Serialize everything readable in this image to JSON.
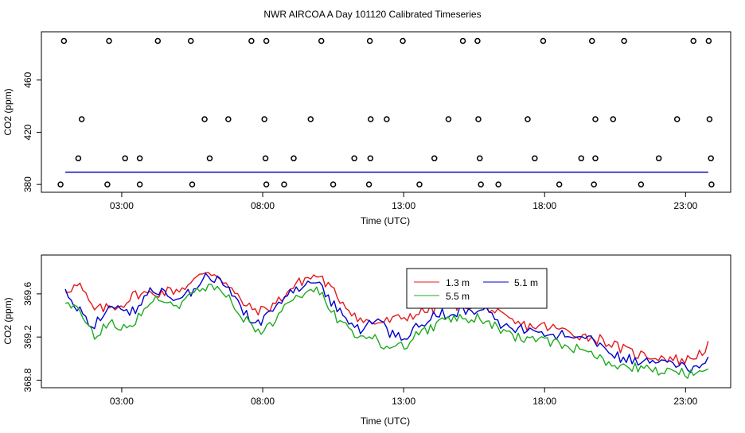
{
  "title": "NWR AIRCOA A  Day 101120  Calibrated Timeseries",
  "colors": {
    "red": "#e41a1c",
    "green": "#1faa1f",
    "blue": "#0000cc",
    "black": "#000000"
  },
  "chart_data": [
    {
      "type": "scatter+line",
      "xlabel": "Time (UTC)",
      "ylabel": "CO2 (ppm)",
      "xlim": [
        0.15,
        24.6
      ],
      "ylim": [
        374,
        497
      ],
      "xticks": [
        3,
        8,
        13,
        18,
        23
      ],
      "xtick_labels": [
        "03:00",
        "08:00",
        "13:00",
        "18:00",
        "23:00"
      ],
      "yticks": [
        380,
        420,
        460
      ],
      "ytick_labels": [
        "380",
        "420",
        "460"
      ],
      "points_x": [
        0.95,
        2.55,
        4.28,
        5.45,
        7.6,
        8.13,
        10.08,
        11.8,
        12.97,
        15.1,
        15.62,
        17.95,
        19.68,
        20.82,
        23.28,
        23.82,
        1.58,
        5.94,
        6.78,
        8.06,
        9.7,
        11.83,
        12.4,
        14.59,
        15.65,
        17.4,
        19.8,
        20.43,
        22.7,
        23.85,
        1.46,
        3.12,
        3.64,
        6.12,
        8.1,
        9.1,
        11.25,
        11.82,
        14.09,
        15.7,
        17.65,
        19.3,
        19.8,
        22.05,
        23.9,
        0.83,
        2.49,
        3.64,
        5.5,
        8.13,
        8.76,
        10.5,
        11.77,
        13.56,
        15.74,
        16.36,
        18.52,
        19.75,
        21.42,
        23.92
      ],
      "points_y": [
        490,
        490,
        490,
        490,
        490,
        490,
        490,
        490,
        490,
        490,
        490,
        490,
        490,
        490,
        490,
        490,
        430,
        430,
        430,
        430,
        430,
        430,
        430,
        430,
        430,
        430,
        430,
        430,
        430,
        430,
        400,
        400,
        400,
        400,
        400,
        400,
        400,
        400,
        400,
        400,
        400,
        400,
        400,
        400,
        400,
        380,
        380,
        380,
        380,
        380,
        380,
        380,
        380,
        380,
        380,
        380,
        380,
        380,
        380,
        380
      ],
      "flat_line_value": 389.4,
      "flat_line_range": [
        1.0,
        23.8
      ]
    },
    {
      "type": "line",
      "xlabel": "Time (UTC)",
      "ylabel": "CO2 (ppm)",
      "xlim": [
        0.15,
        24.6
      ],
      "ylim": [
        368.73,
        369.96
      ],
      "xticks": [
        3,
        8,
        13,
        18,
        23
      ],
      "xtick_labels": [
        "03:00",
        "08:00",
        "13:00",
        "18:00",
        "23:00"
      ],
      "yticks": [
        368.8,
        369.2,
        369.6
      ],
      "ytick_labels": [
        "368.8",
        "369.2",
        "369.6"
      ],
      "legend_position": "top-center",
      "legend": [
        "1.3 m",
        "5.1 m",
        "5.5 m"
      ],
      "x_range": [
        1.0,
        23.8
      ],
      "series": [
        {
          "name": "1.3 m",
          "color": "red",
          "anchors_x": [
            1,
            1.5,
            2,
            2.5,
            3,
            3.5,
            4,
            4.5,
            5,
            5.5,
            6,
            6.5,
            7,
            7.5,
            8,
            8.5,
            9,
            9.5,
            10,
            10.5,
            11,
            11.5,
            12,
            12.5,
            13,
            13.5,
            14,
            14.5,
            15,
            15.5,
            16,
            16.5,
            17,
            17.5,
            18,
            18.5,
            19,
            19.5,
            20,
            20.5,
            21,
            21.5,
            22,
            22.5,
            23,
            23.5,
            23.8
          ],
          "anchors_y": [
            369.64,
            369.68,
            369.45,
            369.47,
            369.5,
            369.6,
            369.6,
            369.62,
            369.64,
            369.7,
            369.82,
            369.76,
            369.6,
            369.47,
            369.44,
            369.52,
            369.65,
            369.74,
            369.77,
            369.62,
            369.48,
            369.35,
            369.33,
            369.35,
            369.38,
            369.42,
            369.46,
            369.48,
            369.5,
            369.5,
            369.48,
            369.38,
            369.32,
            369.3,
            369.3,
            369.27,
            369.24,
            369.2,
            369.18,
            369.12,
            369.06,
            369.03,
            369.02,
            369.0,
            368.98,
            369.05,
            369.12
          ],
          "amplitude": 0.05
        },
        {
          "name": "5.1 m",
          "color": "blue",
          "anchors_x": [
            1,
            1.5,
            2,
            2.5,
            3,
            3.5,
            4,
            4.5,
            5,
            5.5,
            6,
            6.5,
            7,
            7.5,
            8,
            8.5,
            9,
            9.5,
            10,
            10.5,
            11,
            11.5,
            12,
            12.5,
            13,
            13.5,
            14,
            14.5,
            15,
            15.5,
            16,
            16.5,
            17,
            17.5,
            18,
            18.5,
            19,
            19.5,
            20,
            20.5,
            21,
            21.5,
            22,
            22.5,
            23,
            23.5,
            23.8
          ],
          "anchors_y": [
            369.6,
            369.45,
            369.3,
            369.5,
            369.42,
            369.45,
            369.65,
            369.6,
            369.56,
            369.62,
            369.75,
            369.72,
            369.55,
            369.38,
            369.34,
            369.5,
            369.62,
            369.7,
            369.7,
            369.5,
            369.36,
            369.26,
            369.38,
            369.24,
            369.2,
            369.3,
            369.4,
            369.42,
            369.44,
            369.44,
            369.46,
            369.28,
            369.28,
            369.25,
            369.22,
            369.22,
            369.2,
            369.18,
            369.12,
            369.02,
            369.0,
            368.98,
            368.96,
            368.94,
            368.92,
            368.92,
            369.0
          ],
          "amplitude": 0.05
        },
        {
          "name": "5.5 m",
          "color": "green",
          "anchors_x": [
            1,
            1.5,
            2,
            2.5,
            3,
            3.5,
            4,
            4.5,
            5,
            5.5,
            6,
            6.5,
            7,
            7.5,
            8,
            8.5,
            9,
            9.5,
            10,
            10.5,
            11,
            11.5,
            12,
            12.5,
            13,
            13.5,
            14,
            14.5,
            15,
            15.5,
            16,
            16.5,
            17,
            17.5,
            18,
            18.5,
            19,
            19.5,
            20,
            20.5,
            21,
            21.5,
            22,
            22.5,
            23,
            23.5,
            23.8
          ],
          "anchors_y": [
            369.5,
            369.42,
            369.22,
            369.32,
            369.3,
            369.35,
            369.55,
            369.52,
            369.5,
            369.58,
            369.68,
            369.62,
            369.5,
            369.32,
            369.26,
            369.38,
            369.55,
            369.62,
            369.62,
            369.42,
            369.28,
            369.18,
            369.18,
            369.1,
            369.12,
            369.22,
            369.3,
            369.34,
            369.38,
            369.38,
            369.36,
            369.24,
            369.2,
            369.18,
            369.16,
            369.15,
            369.1,
            369.08,
            369.02,
            368.92,
            368.92,
            368.9,
            368.88,
            368.88,
            368.86,
            368.86,
            368.88
          ],
          "amplitude": 0.05
        }
      ]
    }
  ]
}
